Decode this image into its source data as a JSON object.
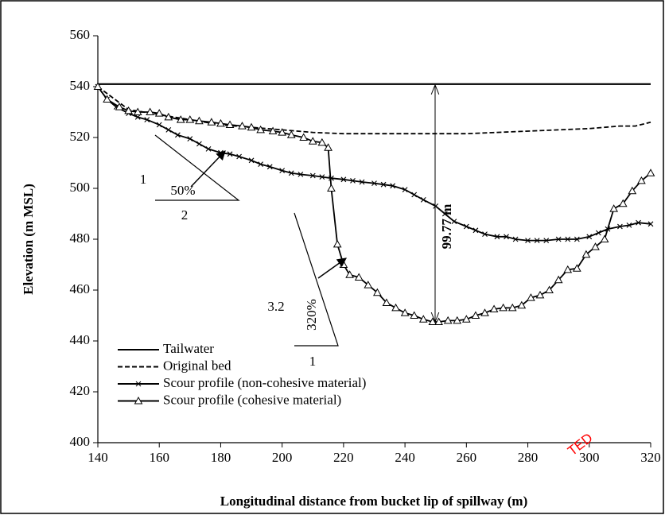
{
  "chart_data": {
    "type": "line",
    "xlabel": "Longitudinal distance from bucket lip of spillway (m)",
    "ylabel": "Elevation (m MSL)",
    "xlim": [
      140,
      320
    ],
    "xticks": [
      140,
      160,
      180,
      200,
      220,
      240,
      260,
      280,
      300,
      320
    ],
    "ylim": [
      400,
      560
    ],
    "yticks": [
      400,
      420,
      440,
      460,
      480,
      500,
      520,
      540,
      560
    ],
    "legend": "lower left",
    "series": [
      {
        "name": "Tailwater",
        "color": "#000000",
        "style": "solid",
        "marker": "none",
        "x": [
          140,
          320
        ],
        "values": [
          541,
          541
        ]
      },
      {
        "name": "Original bed",
        "color": "#000000",
        "style": "dashed",
        "marker": "none",
        "x": [
          140,
          150,
          160,
          170,
          180,
          190,
          200,
          210,
          220,
          230,
          240,
          250,
          260,
          270,
          280,
          290,
          300,
          310,
          315,
          320
        ],
        "values": [
          540,
          531,
          529,
          527,
          525,
          524,
          523,
          522,
          521.5,
          521.5,
          521.5,
          521.5,
          521.5,
          522,
          522.5,
          523,
          523.5,
          524.5,
          524.5,
          526
        ]
      },
      {
        "name": "Scour profile (non-cohesive material)",
        "color": "#000000",
        "style": "solid",
        "marker": "x",
        "x": [
          140,
          143,
          146,
          150,
          153,
          156,
          160,
          163,
          166,
          170,
          173,
          176,
          180,
          183,
          186,
          190,
          193,
          196,
          200,
          203,
          206,
          210,
          213,
          216,
          220,
          223,
          226,
          230,
          233,
          236,
          240,
          243,
          246,
          250,
          253,
          256,
          260,
          263,
          266,
          270,
          273,
          276,
          280,
          283,
          286,
          290,
          293,
          296,
          300,
          303,
          306,
          310,
          313,
          316,
          320
        ],
        "values": [
          540,
          535,
          532,
          529.5,
          528,
          527,
          525,
          523,
          521,
          519.5,
          517.5,
          515.5,
          514,
          513.5,
          512.5,
          511,
          509.5,
          508.5,
          507,
          506,
          505.5,
          505,
          504.5,
          504,
          503.5,
          503,
          502.5,
          502,
          501.5,
          501,
          499.5,
          497.5,
          495.5,
          493,
          490,
          487,
          485,
          483.5,
          482,
          481,
          481,
          480,
          479.5,
          479.5,
          479.5,
          480,
          480,
          480,
          481,
          482.5,
          484,
          485,
          485.5,
          486.5,
          486
        ]
      },
      {
        "name": "Scour profile (cohesive material)",
        "color": "#000000",
        "style": "solid",
        "marker": "triangle",
        "x": [
          140,
          143,
          147,
          150,
          153,
          157,
          160,
          163,
          167,
          170,
          173,
          177,
          180,
          183,
          187,
          190,
          193,
          197,
          200,
          203,
          207,
          210,
          213,
          215,
          216,
          218,
          220,
          222,
          225,
          228,
          231,
          234,
          237,
          240,
          243,
          246,
          249,
          251,
          254,
          257,
          260,
          263,
          266,
          269,
          272,
          275,
          278,
          281,
          284,
          287,
          290,
          293,
          296,
          299,
          302,
          305,
          308,
          311,
          314,
          317,
          320
        ],
        "values": [
          540,
          535,
          532,
          530.5,
          530,
          530,
          529.5,
          528,
          527,
          527,
          526.5,
          526,
          525.5,
          525,
          524.5,
          524,
          523,
          522.5,
          522,
          521,
          520,
          518.5,
          518,
          516,
          500,
          478,
          470,
          466,
          465,
          462,
          459,
          455,
          453,
          451,
          450,
          448.5,
          447.5,
          447.5,
          448,
          448,
          448.5,
          450,
          451,
          452.5,
          453,
          453,
          454,
          457,
          458,
          460,
          464,
          468,
          468.5,
          474,
          477,
          480,
          492,
          494,
          499,
          503,
          506
        ]
      }
    ],
    "annotations": [
      "1",
      "50%",
      "2",
      "3.2",
      "320%",
      "1",
      "99.77 m"
    ],
    "watermark": "TED"
  }
}
